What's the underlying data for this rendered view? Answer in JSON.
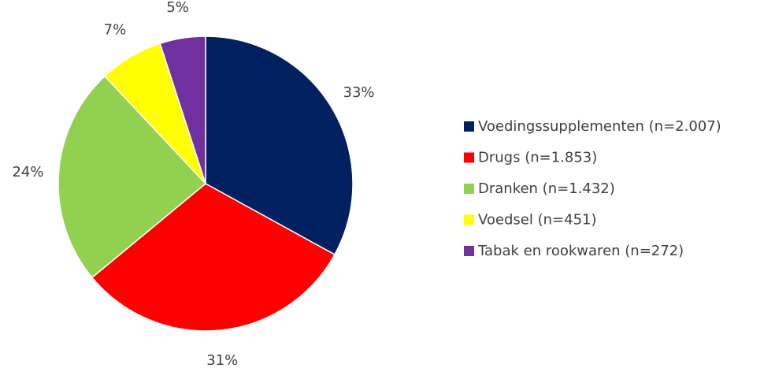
{
  "chart_data": {
    "type": "pie",
    "categories": [
      "Voedingssupplementen (n=2.007)",
      "Drugs (n=1.853)",
      "Dranken (n=1.432)",
      "Voedsel (n=451)",
      "Tabak en rookwaren (n=272)"
    ],
    "values": [
      33,
      31,
      24,
      7,
      5
    ],
    "value_labels": [
      "33%",
      "31%",
      "24%",
      "7%",
      "5%"
    ],
    "colors": [
      "#002060",
      "#ff0000",
      "#92d050",
      "#ffff00",
      "#7030a0"
    ],
    "legend": "right"
  }
}
